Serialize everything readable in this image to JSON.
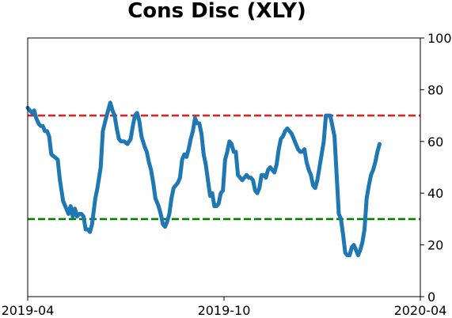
{
  "chart_data": {
    "type": "line",
    "title": "Cons Disc (XLY)",
    "xlabel": "",
    "ylabel": "",
    "x_ticks": [
      "2019-04",
      "2019-10",
      "2020-04"
    ],
    "xlim": [
      "2019-04-01",
      "2020-04-01"
    ],
    "ylim": [
      0,
      100
    ],
    "y_ticks": [
      0,
      20,
      40,
      60,
      80,
      100
    ],
    "y_axis_side": "right",
    "grid": false,
    "legend": "none",
    "reference_lines": [
      {
        "y": 70,
        "color": "#d62728",
        "style": "dashed"
      },
      {
        "y": 30,
        "color": "#008000",
        "style": "dashed"
      }
    ],
    "series": [
      {
        "color": "#1f77b4",
        "points": [
          [
            "2019-04-01",
            73
          ],
          [
            "2019-04-03",
            72
          ],
          [
            "2019-04-05",
            71
          ],
          [
            "2019-04-07",
            72
          ],
          [
            "2019-04-09",
            69
          ],
          [
            "2019-04-11",
            67
          ],
          [
            "2019-04-13",
            66
          ],
          [
            "2019-04-15",
            66
          ],
          [
            "2019-04-17",
            64
          ],
          [
            "2019-04-19",
            64
          ],
          [
            "2019-04-21",
            62
          ],
          [
            "2019-04-23",
            55
          ],
          [
            "2019-04-26",
            54
          ],
          [
            "2019-04-29",
            53
          ],
          [
            "2019-05-01",
            45
          ],
          [
            "2019-05-04",
            37
          ],
          [
            "2019-05-07",
            34
          ],
          [
            "2019-05-09",
            32
          ],
          [
            "2019-05-11",
            35
          ],
          [
            "2019-05-13",
            31
          ],
          [
            "2019-05-15",
            34
          ],
          [
            "2019-05-17",
            31
          ],
          [
            "2019-05-19",
            32
          ],
          [
            "2019-05-21",
            32
          ],
          [
            "2019-05-23",
            31
          ],
          [
            "2019-05-25",
            26
          ],
          [
            "2019-05-27",
            26
          ],
          [
            "2019-05-29",
            25
          ],
          [
            "2019-05-31",
            28
          ],
          [
            "2019-06-03",
            38
          ],
          [
            "2019-06-05",
            42
          ],
          [
            "2019-06-08",
            50
          ],
          [
            "2019-06-10",
            64
          ],
          [
            "2019-06-13",
            69
          ],
          [
            "2019-06-15",
            72
          ],
          [
            "2019-06-17",
            75
          ],
          [
            "2019-06-19",
            72
          ],
          [
            "2019-06-21",
            70
          ],
          [
            "2019-06-23",
            65
          ],
          [
            "2019-06-25",
            61
          ],
          [
            "2019-06-27",
            60
          ],
          [
            "2019-06-30",
            60
          ],
          [
            "2019-07-03",
            59
          ],
          [
            "2019-07-06",
            61
          ],
          [
            "2019-07-08",
            66
          ],
          [
            "2019-07-10",
            70
          ],
          [
            "2019-07-12",
            71
          ],
          [
            "2019-07-14",
            68
          ],
          [
            "2019-07-16",
            62
          ],
          [
            "2019-07-19",
            58
          ],
          [
            "2019-07-21",
            56
          ],
          [
            "2019-07-23",
            52
          ],
          [
            "2019-07-25",
            49
          ],
          [
            "2019-07-27",
            44
          ],
          [
            "2019-07-29",
            38
          ],
          [
            "2019-08-01",
            35
          ],
          [
            "2019-08-03",
            32
          ],
          [
            "2019-08-05",
            28
          ],
          [
            "2019-08-07",
            27
          ],
          [
            "2019-08-09",
            29
          ],
          [
            "2019-08-11",
            32
          ],
          [
            "2019-08-13",
            38
          ],
          [
            "2019-08-15",
            42
          ],
          [
            "2019-08-17",
            43
          ],
          [
            "2019-08-19",
            44
          ],
          [
            "2019-08-21",
            46
          ],
          [
            "2019-08-23",
            53
          ],
          [
            "2019-08-25",
            55
          ],
          [
            "2019-08-27",
            54
          ],
          [
            "2019-08-29",
            57
          ],
          [
            "2019-08-31",
            61
          ],
          [
            "2019-09-02",
            64
          ],
          [
            "2019-09-04",
            69
          ],
          [
            "2019-09-06",
            67
          ],
          [
            "2019-09-08",
            67
          ],
          [
            "2019-09-10",
            63
          ],
          [
            "2019-09-12",
            55
          ],
          [
            "2019-09-14",
            51
          ],
          [
            "2019-09-16",
            45
          ],
          [
            "2019-09-18",
            39
          ],
          [
            "2019-09-20",
            40
          ],
          [
            "2019-09-22",
            35
          ],
          [
            "2019-09-24",
            35
          ],
          [
            "2019-09-26",
            36
          ],
          [
            "2019-09-28",
            40
          ],
          [
            "2019-09-30",
            41
          ],
          [
            "2019-10-02",
            53
          ],
          [
            "2019-10-04",
            56
          ],
          [
            "2019-10-06",
            60
          ],
          [
            "2019-10-08",
            59
          ],
          [
            "2019-10-10",
            56
          ],
          [
            "2019-10-12",
            56
          ],
          [
            "2019-10-14",
            47
          ],
          [
            "2019-10-16",
            46
          ],
          [
            "2019-10-18",
            45
          ],
          [
            "2019-10-20",
            46
          ],
          [
            "2019-10-22",
            47
          ],
          [
            "2019-10-24",
            46
          ],
          [
            "2019-10-26",
            46
          ],
          [
            "2019-10-28",
            45
          ],
          [
            "2019-10-30",
            41
          ],
          [
            "2019-11-01",
            40
          ],
          [
            "2019-11-03",
            42
          ],
          [
            "2019-11-05",
            47
          ],
          [
            "2019-11-07",
            47
          ],
          [
            "2019-11-09",
            46
          ],
          [
            "2019-11-11",
            49
          ],
          [
            "2019-11-13",
            50
          ],
          [
            "2019-11-15",
            49
          ],
          [
            "2019-11-17",
            48
          ],
          [
            "2019-11-19",
            51
          ],
          [
            "2019-11-21",
            57
          ],
          [
            "2019-11-23",
            61
          ],
          [
            "2019-11-25",
            62
          ],
          [
            "2019-11-27",
            64
          ],
          [
            "2019-11-29",
            65
          ],
          [
            "2019-12-01",
            64
          ],
          [
            "2019-12-03",
            63
          ],
          [
            "2019-12-05",
            61
          ],
          [
            "2019-12-07",
            59
          ],
          [
            "2019-12-09",
            57
          ],
          [
            "2019-12-11",
            56
          ],
          [
            "2019-12-13",
            56
          ],
          [
            "2019-12-15",
            57
          ],
          [
            "2019-12-17",
            52
          ],
          [
            "2019-12-19",
            49
          ],
          [
            "2019-12-21",
            47
          ],
          [
            "2019-12-23",
            43
          ],
          [
            "2019-12-25",
            42
          ],
          [
            "2019-12-27",
            45
          ],
          [
            "2019-12-29",
            50
          ],
          [
            "2019-12-31",
            55
          ],
          [
            "2020-01-02",
            60
          ],
          [
            "2020-01-04",
            70
          ],
          [
            "2020-01-06",
            70
          ],
          [
            "2020-01-08",
            70
          ],
          [
            "2020-01-10",
            66
          ],
          [
            "2020-01-12",
            62
          ],
          [
            "2020-01-14",
            47
          ],
          [
            "2020-01-16",
            32
          ],
          [
            "2020-01-18",
            30
          ],
          [
            "2020-01-20",
            24
          ],
          [
            "2020-01-22",
            17
          ],
          [
            "2020-01-24",
            16
          ],
          [
            "2020-01-26",
            16
          ],
          [
            "2020-01-28",
            19
          ],
          [
            "2020-01-30",
            20
          ],
          [
            "2020-02-01",
            18
          ],
          [
            "2020-02-03",
            16
          ],
          [
            "2020-02-05",
            18
          ],
          [
            "2020-02-07",
            21
          ],
          [
            "2020-02-09",
            26
          ],
          [
            "2020-02-11",
            38
          ],
          [
            "2020-02-13",
            43
          ],
          [
            "2020-02-15",
            47
          ],
          [
            "2020-02-17",
            49
          ],
          [
            "2020-02-19",
            52
          ],
          [
            "2020-02-21",
            56
          ],
          [
            "2020-02-23",
            59
          ]
        ]
      }
    ]
  }
}
